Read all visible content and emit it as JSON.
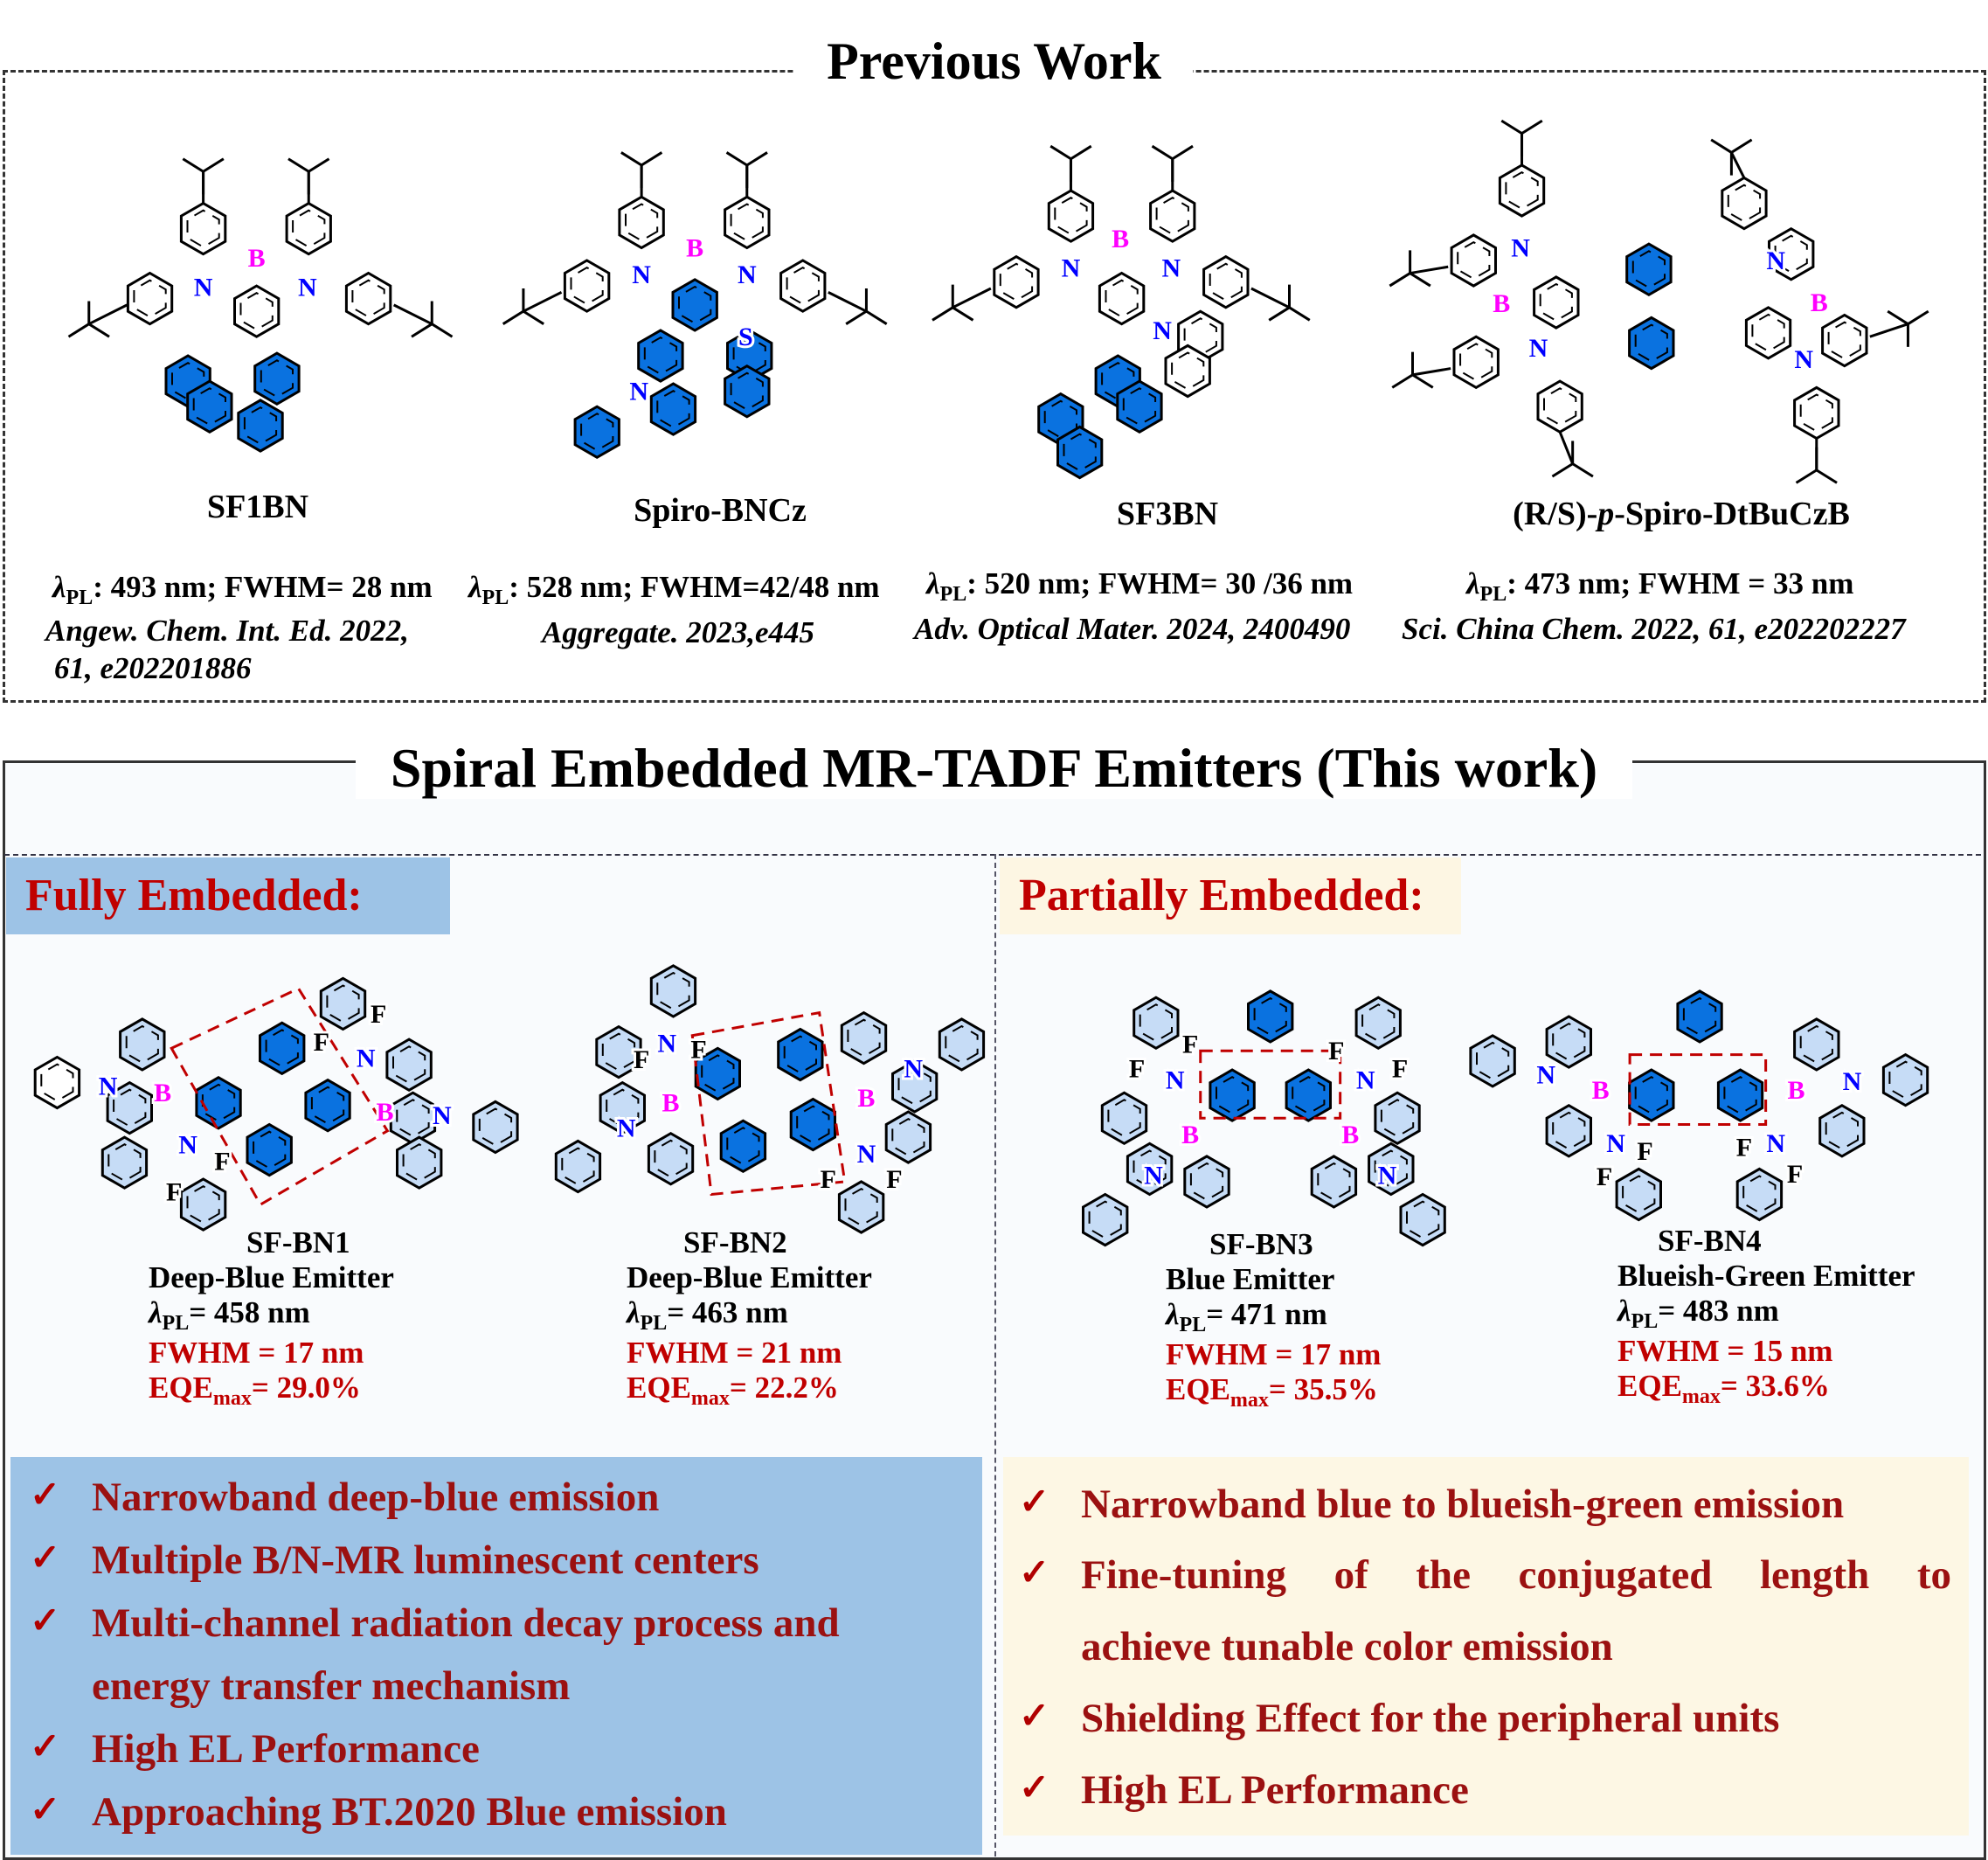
{
  "previous_work": {
    "title": "Previous Work",
    "molecules": [
      {
        "name": "SF1BN",
        "lambda_symbol": "λ",
        "lambda_sub": "PL",
        "props": ": 493 nm; FWHM= 28 nm",
        "ref_line1": "Angew. Chem. Int. Ed. 2022,",
        "ref_line2": "61, e202201886",
        "atoms": [
          "N",
          "B",
          "N"
        ]
      },
      {
        "name": "Spiro-BNCz",
        "lambda_symbol": "λ",
        "lambda_sub": "PL",
        "props": ": 528 nm; FWHM=42/48 nm",
        "ref_line1": "Aggregate. 2023,e445",
        "atoms": [
          "N",
          "B",
          "N",
          "S",
          "N"
        ]
      },
      {
        "name": "SF3BN",
        "lambda_symbol": "λ",
        "lambda_sub": "PL",
        "props": ": 520 nm; FWHM= 30 /36 nm",
        "ref_line1": "Adv. Optical Mater. 2024, 2400490",
        "atoms": [
          "N",
          "B",
          "N",
          "N"
        ]
      },
      {
        "name": "(R/S)-p-Spiro-DtBuCzB",
        "lambda_symbol": "λ",
        "lambda_sub": "PL",
        "props": ": 473 nm; FWHM = 33 nm",
        "ref_line1": "Sci. China Chem. 2022, 61, e202202227",
        "atoms": [
          "N",
          "B",
          "N",
          "N",
          "B",
          "N"
        ]
      }
    ]
  },
  "this_work": {
    "title": "Spiral Embedded MR-TADF Emitters (This work)",
    "fully": {
      "label": "Fully Embedded:",
      "bullets": [
        "Narrowband deep-blue emission",
        "Multiple B/N-MR luminescent centers",
        "Multi-channel radiation decay process and",
        "energy transfer mechanism",
        "High EL Performance",
        "Approaching BT.2020 Blue emission"
      ]
    },
    "partially": {
      "label": "Partially Embedded:",
      "bullets": [
        "Narrowband blue to blueish-green emission",
        "Fine-tuning of the conjugated length to",
        "achieve tunable color emission",
        "Shielding Effect for the peripheral units",
        "High EL Performance"
      ]
    },
    "check_symbol": "✓",
    "emitters": [
      {
        "name": "SF-BN1",
        "type": "Deep-Blue Emitter",
        "lambda": "= 458 nm",
        "fwhm": "FWHM = 17 nm",
        "eqe": "= 29.0%",
        "atoms": [
          "N",
          "B",
          "N",
          "F",
          "F",
          "N",
          "F",
          "F",
          "B",
          "N"
        ]
      },
      {
        "name": "SF-BN2",
        "type": "Deep-Blue Emitter",
        "lambda": "= 463 nm",
        "fwhm": "FWHM = 21 nm",
        "eqe": "= 22.2%",
        "atoms": [
          "N",
          "F",
          "F",
          "N",
          "B",
          "B",
          "N",
          "N",
          "F",
          "F"
        ]
      },
      {
        "name": "SF-BN3",
        "type": "Blue Emitter",
        "lambda": "= 471 nm",
        "fwhm": "FWHM = 17 nm",
        "eqe": "= 35.5%",
        "atoms": [
          "N",
          "F",
          "F",
          "B",
          "F",
          "F",
          "N",
          "B",
          "N",
          "N"
        ]
      },
      {
        "name": "SF-BN4",
        "type": "Blueish-Green Emitter",
        "lambda": "= 483 nm",
        "fwhm": "FWHM = 15 nm",
        "eqe": "= 33.6%",
        "atoms": [
          "N",
          "B",
          "N",
          "F",
          "F",
          "B",
          "N",
          "F",
          "F",
          "N"
        ]
      }
    ],
    "lambda_symbol": "λ",
    "lambda_sub": "PL",
    "eqe_label": "EQE",
    "eqe_sub": "max"
  },
  "colors": {
    "fully_bg": "#9dc3e6",
    "partially_bg": "#fdf6e3",
    "accent_red": "#c00000",
    "spiro_blue": "#0a72e0",
    "ring_light_blue": "#c6dcf6",
    "nitrogen": "#0000ff",
    "boron": "#ff00ff"
  }
}
